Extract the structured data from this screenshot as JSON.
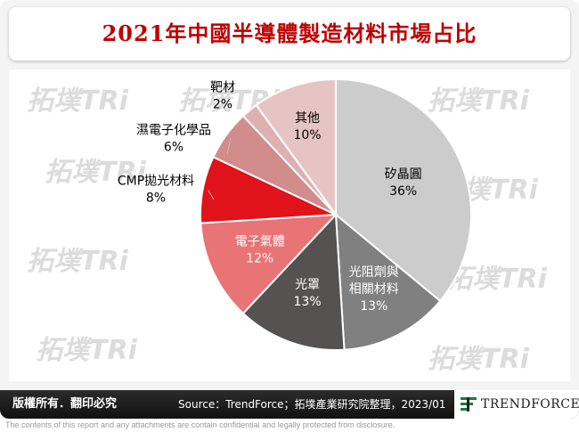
{
  "header": {
    "title": "2021年中國半導體製造材料市場占比"
  },
  "watermark": {
    "text": "拓墣TRi"
  },
  "chart_data": {
    "type": "pie",
    "title": "2021年中國半導體製造材料市場占比",
    "start_angle_deg": 0,
    "direction": "clockwise",
    "slices": [
      {
        "label": "矽晶圓",
        "value": 36,
        "value_label": "36%",
        "color": "#cccccc",
        "text_color": "#000000"
      },
      {
        "label": "光阻劑與相關材料",
        "value": 13,
        "value_label": "13%",
        "color": "#808080",
        "text_color": "#ffffff"
      },
      {
        "label": "光罩",
        "value": 13,
        "value_label": "13%",
        "color": "#555252",
        "text_color": "#ffffff"
      },
      {
        "label": "電子氣體",
        "value": 12,
        "value_label": "12%",
        "color": "#e87476",
        "text_color": "#ffffff"
      },
      {
        "label": "CMP拋光材料",
        "value": 8,
        "value_label": "8%",
        "color": "#e0121a",
        "text_color": "#000000"
      },
      {
        "label": "濕電子化學品",
        "value": 6,
        "value_label": "6%",
        "color": "#d18c8c",
        "text_color": "#000000"
      },
      {
        "label": "靶材",
        "value": 2,
        "value_label": "2%",
        "color": "#deb1b1",
        "text_color": "#000000"
      },
      {
        "label": "其他",
        "value": 10,
        "value_label": "10%",
        "color": "#e7c4c4",
        "text_color": "#000000"
      }
    ]
  },
  "footer": {
    "rights": "版權所有．翻印必究",
    "source": "Source：TrendForce；拓墣產業研究院整理，2023/01",
    "brand": "TRENDFORCE",
    "disclaimer": "The contents of this report and any attachments are contain confidential and legally protected from disclosure."
  }
}
